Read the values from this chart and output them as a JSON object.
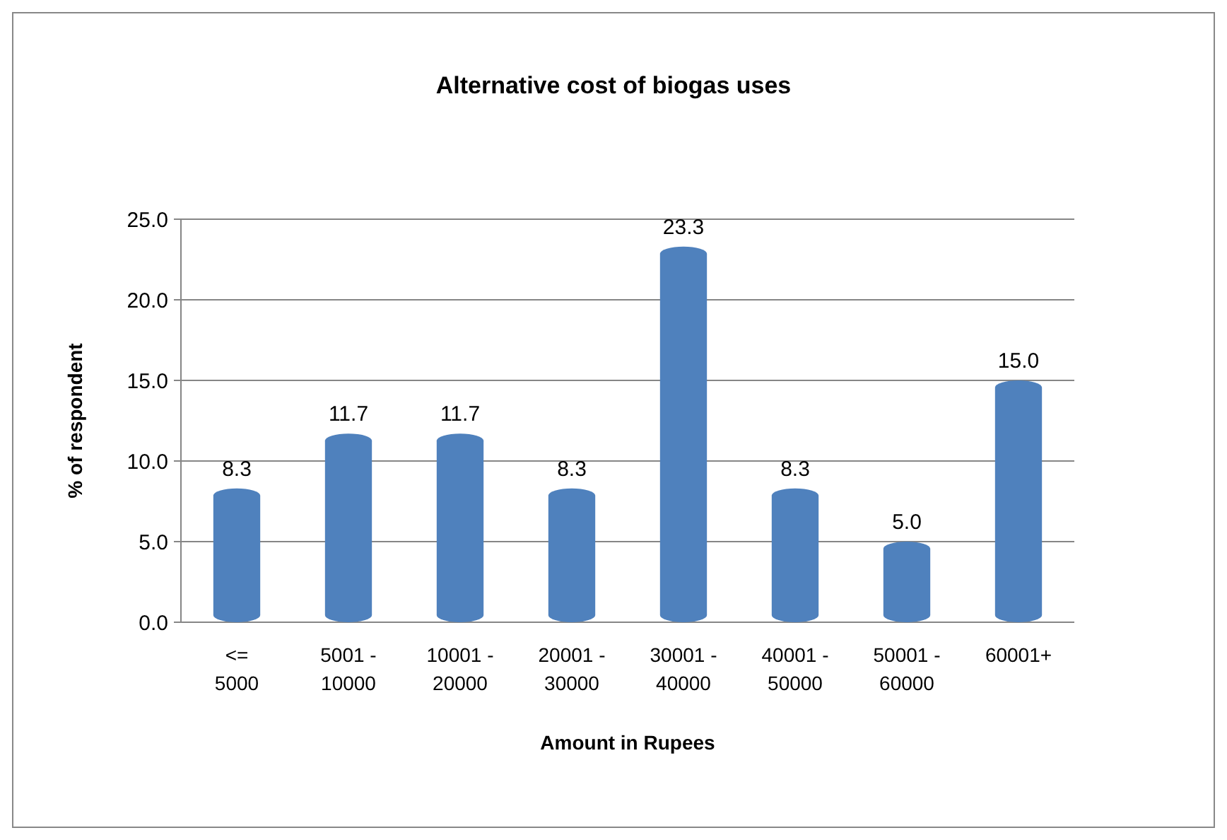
{
  "chart_data": {
    "type": "bar",
    "title": "Alternative cost of biogas uses",
    "xlabel": "Amount in Rupees",
    "ylabel": "% of respondent",
    "categories": [
      "<= 5000",
      "5001 - 10000",
      "10001 - 20000",
      "20001 - 30000",
      "30001 - 40000",
      "40001 - 50000",
      "50001 - 60000",
      "60001+"
    ],
    "values": [
      8.3,
      11.7,
      11.7,
      8.3,
      23.3,
      8.3,
      5.0,
      15.0
    ],
    "value_labels": [
      "8.3",
      "11.7",
      "11.7",
      "8.3",
      "23.3",
      "8.3",
      "5.0",
      "15.0"
    ],
    "color": "#4f81bd",
    "ylim": [
      0,
      25
    ],
    "yticks": [
      {
        "value": 0,
        "label": "0.0"
      },
      {
        "value": 5,
        "label": "5.0"
      },
      {
        "value": 10,
        "label": "10.0"
      },
      {
        "value": 15,
        "label": "15.0"
      },
      {
        "value": 20,
        "label": "20.0"
      },
      {
        "value": 25,
        "label": "25.0"
      }
    ],
    "grid": true
  }
}
